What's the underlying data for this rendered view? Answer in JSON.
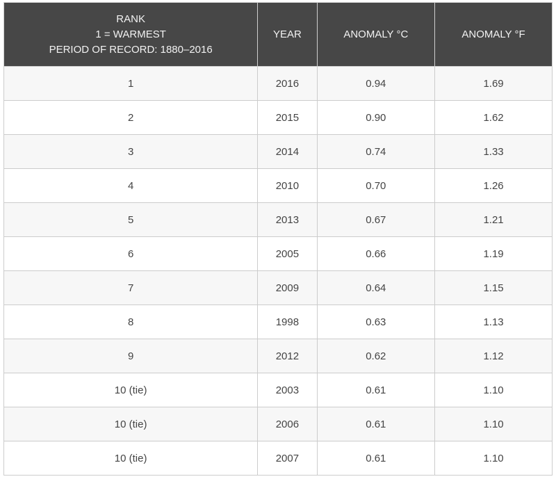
{
  "colors": {
    "header_bg": "#474747",
    "header_text": "#f2f2f2",
    "row_alt_bg": "#f7f7f7",
    "row_bg": "#ffffff",
    "border": "#cccccc",
    "cell_text": "#444444"
  },
  "table": {
    "header": {
      "rank_lines": [
        "RANK",
        "1 = WARMEST",
        "PERIOD OF RECORD: 1880–2016"
      ],
      "year": "YEAR",
      "anomaly_c": "ANOMALY °C",
      "anomaly_f": "ANOMALY °F"
    },
    "rows": [
      {
        "rank": "1",
        "year": "2016",
        "anomaly_c": "0.94",
        "anomaly_f": "1.69"
      },
      {
        "rank": "2",
        "year": "2015",
        "anomaly_c": "0.90",
        "anomaly_f": "1.62"
      },
      {
        "rank": "3",
        "year": "2014",
        "anomaly_c": "0.74",
        "anomaly_f": "1.33"
      },
      {
        "rank": "4",
        "year": "2010",
        "anomaly_c": "0.70",
        "anomaly_f": "1.26"
      },
      {
        "rank": "5",
        "year": "2013",
        "anomaly_c": "0.67",
        "anomaly_f": "1.21"
      },
      {
        "rank": "6",
        "year": "2005",
        "anomaly_c": "0.66",
        "anomaly_f": "1.19"
      },
      {
        "rank": "7",
        "year": "2009",
        "anomaly_c": "0.64",
        "anomaly_f": "1.15"
      },
      {
        "rank": "8",
        "year": "1998",
        "anomaly_c": "0.63",
        "anomaly_f": "1.13"
      },
      {
        "rank": "9",
        "year": "2012",
        "anomaly_c": "0.62",
        "anomaly_f": "1.12"
      },
      {
        "rank": "10 (tie)",
        "year": "2003",
        "anomaly_c": "0.61",
        "anomaly_f": "1.10"
      },
      {
        "rank": "10 (tie)",
        "year": "2006",
        "anomaly_c": "0.61",
        "anomaly_f": "1.10"
      },
      {
        "rank": "10 (tie)",
        "year": "2007",
        "anomaly_c": "0.61",
        "anomaly_f": "1.10"
      }
    ]
  },
  "chart_data": {
    "type": "table",
    "title": "Rank of warmest years (1 = warmest), period of record: 1880–2016",
    "columns": [
      "RANK 1 = WARMEST PERIOD OF RECORD: 1880–2016",
      "YEAR",
      "ANOMALY °C",
      "ANOMALY °F"
    ],
    "rows": [
      [
        "1",
        2016,
        0.94,
        1.69
      ],
      [
        "2",
        2015,
        0.9,
        1.62
      ],
      [
        "3",
        2014,
        0.74,
        1.33
      ],
      [
        "4",
        2010,
        0.7,
        1.26
      ],
      [
        "5",
        2013,
        0.67,
        1.21
      ],
      [
        "6",
        2005,
        0.66,
        1.19
      ],
      [
        "7",
        2009,
        0.64,
        1.15
      ],
      [
        "8",
        1998,
        0.63,
        1.13
      ],
      [
        "9",
        2012,
        0.62,
        1.12
      ],
      [
        "10 (tie)",
        2003,
        0.61,
        1.1
      ],
      [
        "10 (tie)",
        2006,
        0.61,
        1.1
      ],
      [
        "10 (tie)",
        2007,
        0.61,
        1.1
      ]
    ]
  }
}
